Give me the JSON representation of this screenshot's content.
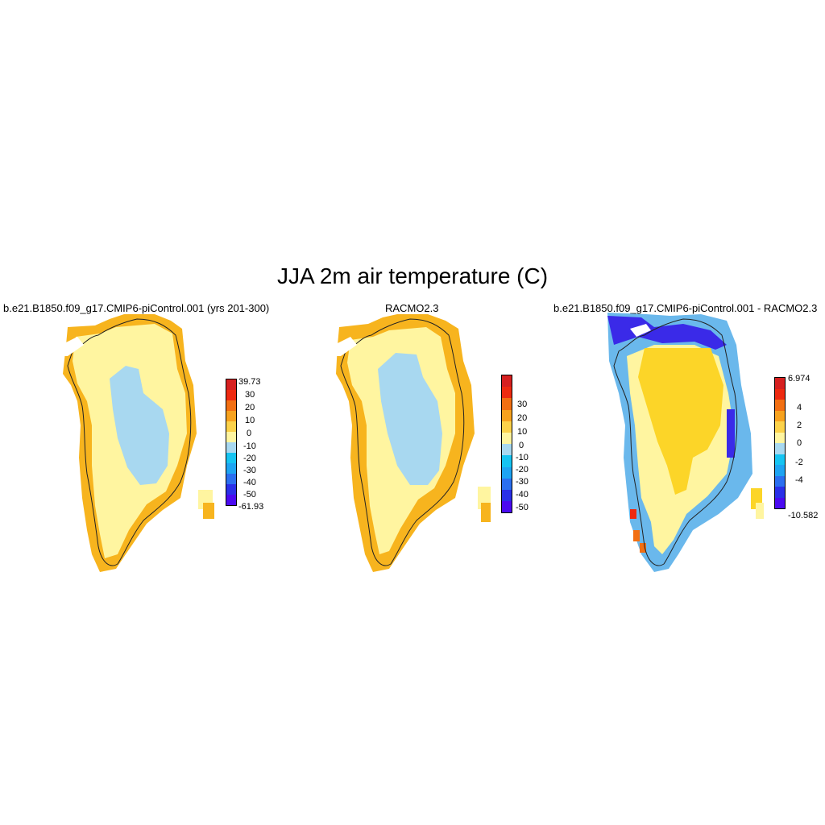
{
  "figure": {
    "title": "JJA 2m air temperature (C)"
  },
  "panels": [
    {
      "title": "b.e21.B1850.f09_g17.CMIP6-piControl.001 (yrs 201-300)",
      "colorbar": {
        "colors": [
          "#4a0af0",
          "#2a30e8",
          "#2b6ff0",
          "#1ea4f2",
          "#16c4f2",
          "#a8d8f0",
          "#fff5a0",
          "#fcd24a",
          "#f7a21e",
          "#f26f12",
          "#ee2a10",
          "#d62020"
        ],
        "labels": [
          "39.73",
          "30",
          "20",
          "10",
          "0",
          "-10",
          "-20",
          "-30",
          "-40",
          "-50",
          "-61.93"
        ]
      }
    },
    {
      "title": "RACMO2.3",
      "colorbar": {
        "colors": [
          "#4a0af0",
          "#2a30e8",
          "#2b6ff0",
          "#1ea4f2",
          "#16c4f2",
          "#a8d8f0",
          "#fff5a0",
          "#fcd24a",
          "#f7a21e",
          "#f26f12",
          "#ee2a10",
          "#d62020"
        ],
        "labels": [
          "30",
          "20",
          "10",
          "0",
          "-10",
          "-20",
          "-30",
          "-40",
          "-50"
        ]
      }
    },
    {
      "title": "b.e21.B1850.f09_g17.CMIP6-piControl.001 - RACMO2.3",
      "colorbar": {
        "colors": [
          "#4a0af0",
          "#2a30e8",
          "#2b6ff0",
          "#1ea4f2",
          "#16c4f2",
          "#a8d8f0",
          "#fff5a0",
          "#fcd24a",
          "#f7a21e",
          "#f26f12",
          "#ee2a10",
          "#d62020"
        ],
        "labels": [
          "6.974",
          "4",
          "2",
          "0",
          "-2",
          "-4",
          "-10.582"
        ]
      }
    }
  ]
}
